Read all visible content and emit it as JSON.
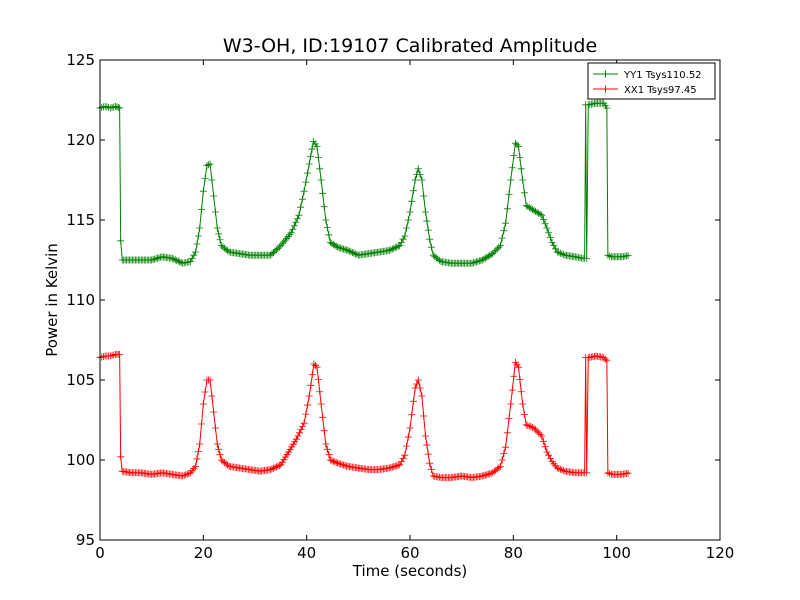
{
  "chart_data": {
    "type": "line",
    "title": "W3-OH, ID:19107 Calibrated Amplitude",
    "xlabel": "Time (seconds)",
    "ylabel": "Power in Kelvin",
    "xlim": [
      0,
      120
    ],
    "ylim": [
      95,
      125
    ],
    "xticks": [
      0,
      20,
      40,
      60,
      80,
      100,
      120
    ],
    "yticks": [
      95,
      100,
      105,
      110,
      115,
      120,
      125
    ],
    "grid": false,
    "legend_position": "top-right",
    "marker": "plus",
    "series": [
      {
        "name": "YY1 Tsys110.52",
        "color": "#008000",
        "points": [
          [
            0.0,
            122.0
          ],
          [
            1.0,
            122.1
          ],
          [
            2.0,
            122.0
          ],
          [
            3.0,
            122.1
          ],
          [
            3.8,
            122.0
          ],
          [
            4.0,
            113.7
          ],
          [
            4.3,
            112.5
          ],
          [
            6,
            112.5
          ],
          [
            8,
            112.5
          ],
          [
            10,
            112.5
          ],
          [
            12,
            112.7
          ],
          [
            14,
            112.6
          ],
          [
            16,
            112.3
          ],
          [
            17.5,
            112.4
          ],
          [
            18.5,
            113.0
          ],
          [
            19.3,
            114.5
          ],
          [
            20.0,
            116.8
          ],
          [
            20.7,
            118.4
          ],
          [
            21.3,
            118.5
          ],
          [
            22.0,
            116.5
          ],
          [
            22.7,
            114.5
          ],
          [
            23.5,
            113.4
          ],
          [
            25,
            113.0
          ],
          [
            27,
            112.9
          ],
          [
            29,
            112.8
          ],
          [
            31,
            112.8
          ],
          [
            33,
            112.8
          ],
          [
            35,
            113.4
          ],
          [
            37,
            114.2
          ],
          [
            38.5,
            115.3
          ],
          [
            39.5,
            116.8
          ],
          [
            40.5,
            118.5
          ],
          [
            41.3,
            119.9
          ],
          [
            42.0,
            119.6
          ],
          [
            42.8,
            117.5
          ],
          [
            43.7,
            115.0
          ],
          [
            44.6,
            113.6
          ],
          [
            46,
            113.3
          ],
          [
            48,
            113.1
          ],
          [
            50,
            112.8
          ],
          [
            52,
            112.9
          ],
          [
            54,
            113.0
          ],
          [
            56,
            113.1
          ],
          [
            58,
            113.4
          ],
          [
            59,
            114.0
          ],
          [
            60,
            115.5
          ],
          [
            61,
            117.5
          ],
          [
            61.6,
            118.2
          ],
          [
            62.3,
            117.5
          ],
          [
            63.0,
            115.5
          ],
          [
            63.8,
            113.8
          ],
          [
            64.5,
            112.8
          ],
          [
            66,
            112.4
          ],
          [
            68,
            112.3
          ],
          [
            70,
            112.3
          ],
          [
            72,
            112.3
          ],
          [
            74,
            112.5
          ],
          [
            76,
            112.9
          ],
          [
            77.5,
            113.4
          ],
          [
            78.5,
            114.8
          ],
          [
            79.5,
            117.5
          ],
          [
            80.4,
            119.8
          ],
          [
            81.0,
            119.6
          ],
          [
            81.8,
            117.5
          ],
          [
            82.5,
            115.9
          ],
          [
            84,
            115.6
          ],
          [
            85.5,
            115.3
          ],
          [
            86.5,
            114.5
          ],
          [
            87.5,
            113.6
          ],
          [
            88.5,
            113.0
          ],
          [
            90,
            112.8
          ],
          [
            92,
            112.7
          ],
          [
            93.5,
            112.6
          ],
          [
            93.8,
            112.6
          ],
          [
            94.0,
            122.2
          ],
          [
            94.2,
            112.6
          ],
          [
            94.5,
            122.2
          ],
          [
            96,
            122.3
          ],
          [
            97.5,
            122.3
          ],
          [
            98.1,
            122.0
          ],
          [
            98.3,
            112.8
          ],
          [
            99,
            112.7
          ],
          [
            101,
            112.7
          ],
          [
            102.5,
            112.8
          ]
        ]
      },
      {
        "name": "XX1 Tsys97.45",
        "color": "#ff0000",
        "points": [
          [
            0.0,
            106.4
          ],
          [
            1.0,
            106.5
          ],
          [
            2.0,
            106.5
          ],
          [
            3.0,
            106.6
          ],
          [
            3.8,
            106.6
          ],
          [
            4.0,
            100.2
          ],
          [
            4.3,
            99.3
          ],
          [
            6,
            99.2
          ],
          [
            8,
            99.2
          ],
          [
            10,
            99.1
          ],
          [
            12,
            99.2
          ],
          [
            14,
            99.1
          ],
          [
            16,
            99.0
          ],
          [
            17.5,
            99.2
          ],
          [
            18.5,
            99.6
          ],
          [
            19.3,
            101.0
          ],
          [
            20.0,
            103.5
          ],
          [
            20.7,
            105.0
          ],
          [
            21.3,
            105.0
          ],
          [
            22.0,
            103.0
          ],
          [
            22.7,
            101.0
          ],
          [
            23.5,
            100.0
          ],
          [
            25,
            99.6
          ],
          [
            27,
            99.5
          ],
          [
            29,
            99.4
          ],
          [
            31,
            99.3
          ],
          [
            33,
            99.4
          ],
          [
            35,
            99.7
          ],
          [
            36.5,
            100.5
          ],
          [
            38,
            101.3
          ],
          [
            39.5,
            102.3
          ],
          [
            40.5,
            104.0
          ],
          [
            41.4,
            106.0
          ],
          [
            42.0,
            105.8
          ],
          [
            42.8,
            103.5
          ],
          [
            43.7,
            101.0
          ],
          [
            44.6,
            100.0
          ],
          [
            46,
            99.8
          ],
          [
            48,
            99.6
          ],
          [
            50,
            99.5
          ],
          [
            52,
            99.4
          ],
          [
            54,
            99.4
          ],
          [
            56,
            99.5
          ],
          [
            58,
            99.7
          ],
          [
            59,
            100.3
          ],
          [
            60,
            102.0
          ],
          [
            61,
            104.5
          ],
          [
            61.6,
            105.0
          ],
          [
            62.3,
            104.0
          ],
          [
            63.0,
            101.5
          ],
          [
            63.8,
            99.8
          ],
          [
            64.5,
            99.0
          ],
          [
            66,
            98.9
          ],
          [
            68,
            98.9
          ],
          [
            70,
            99.0
          ],
          [
            72,
            98.9
          ],
          [
            74,
            99.0
          ],
          [
            76,
            99.2
          ],
          [
            77.5,
            99.6
          ],
          [
            78.5,
            100.8
          ],
          [
            79.5,
            103.5
          ],
          [
            80.4,
            106.1
          ],
          [
            81.0,
            105.8
          ],
          [
            81.8,
            103.5
          ],
          [
            82.5,
            102.2
          ],
          [
            84,
            102.0
          ],
          [
            85.5,
            101.5
          ],
          [
            86.5,
            100.5
          ],
          [
            87.5,
            99.9
          ],
          [
            88.5,
            99.5
          ],
          [
            90,
            99.3
          ],
          [
            92,
            99.2
          ],
          [
            93.5,
            99.2
          ],
          [
            93.8,
            99.2
          ],
          [
            94.0,
            106.4
          ],
          [
            94.2,
            99.2
          ],
          [
            94.5,
            106.4
          ],
          [
            96,
            106.5
          ],
          [
            97.5,
            106.4
          ],
          [
            98.1,
            106.2
          ],
          [
            98.3,
            99.2
          ],
          [
            99,
            99.1
          ],
          [
            101,
            99.1
          ],
          [
            102.5,
            99.2
          ]
        ]
      }
    ]
  }
}
